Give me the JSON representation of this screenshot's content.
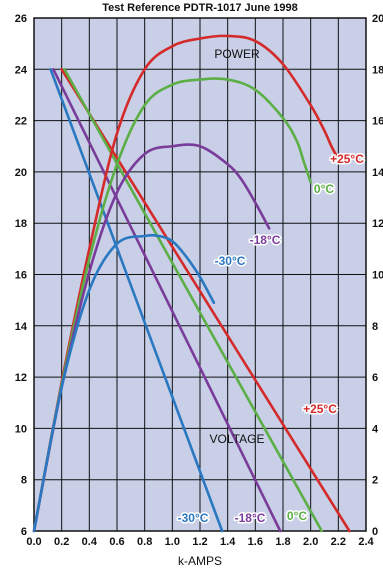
{
  "chart_data": {
    "type": "line",
    "title": "Test Reference PDTR-1017 June 1998",
    "xlabel": "k-AMPS",
    "xlim": [
      0,
      2.4
    ],
    "ylim_left": [
      6,
      26
    ],
    "ylim_right": [
      0,
      20
    ],
    "x_ticks": [
      "0.0",
      "0.2",
      "0.4",
      "0.6",
      "0.8",
      "1.0",
      "1.2",
      "1.4",
      "1.6",
      "1.8",
      "2.0",
      "2.2",
      "2.4"
    ],
    "y_ticks_left": [
      "6",
      "8",
      "10",
      "12",
      "14",
      "16",
      "18",
      "20",
      "22",
      "24",
      "26"
    ],
    "y_ticks_right": [
      "0",
      "2",
      "4",
      "6",
      "8",
      "10",
      "12",
      "14",
      "16",
      "18",
      "20"
    ],
    "grid": true,
    "annotations": {
      "power": "POWER",
      "voltage": "VOLTAGE"
    },
    "colors": {
      "p25": "#d42a2a",
      "p0": "#5cae46",
      "m18": "#7a3c9a",
      "m30": "#2a78c2",
      "plot_bg": "#c8cfe6"
    },
    "power_series": [
      {
        "name": "+25°C",
        "color_key": "p25",
        "x": [
          0,
          0.2,
          0.4,
          0.6,
          0.8,
          1.0,
          1.2,
          1.4,
          1.6,
          1.8,
          2.0,
          2.1,
          2.15,
          2.2
        ],
        "y": [
          6,
          11.8,
          17.0,
          21.5,
          24.0,
          24.9,
          25.2,
          25.3,
          25.1,
          24.2,
          22.6,
          21.6,
          21.0,
          20.5
        ]
      },
      {
        "name": "0°C",
        "color_key": "p0",
        "x": [
          0,
          0.2,
          0.4,
          0.6,
          0.8,
          1.0,
          1.2,
          1.4,
          1.6,
          1.8,
          1.9,
          1.95,
          2.0
        ],
        "y": [
          6,
          11.7,
          16.6,
          20.3,
          22.6,
          23.4,
          23.6,
          23.6,
          23.2,
          22.1,
          21.2,
          20.4,
          19.6
        ]
      },
      {
        "name": "-18°C",
        "color_key": "m18",
        "x": [
          0,
          0.2,
          0.4,
          0.6,
          0.8,
          1.0,
          1.2,
          1.4,
          1.5,
          1.6,
          1.7
        ],
        "y": [
          6,
          11.6,
          16.1,
          19.2,
          20.7,
          21.0,
          21.0,
          20.3,
          19.7,
          18.8,
          17.8
        ]
      },
      {
        "name": "-30°C",
        "color_key": "m30",
        "x": [
          0,
          0.2,
          0.4,
          0.6,
          0.8,
          0.9,
          1.0,
          1.1,
          1.2,
          1.3
        ],
        "y": [
          6,
          11.6,
          15.4,
          17.2,
          17.5,
          17.5,
          17.3,
          16.7,
          15.9,
          14.9
        ]
      }
    ],
    "voltage_series": [
      {
        "name": "+25°C",
        "color_key": "p25",
        "x": [
          0.2,
          2.28
        ],
        "y": [
          24,
          6
        ]
      },
      {
        "name": "0°C",
        "color_key": "p0",
        "x": [
          0.22,
          2.08
        ],
        "y": [
          24,
          6
        ]
      },
      {
        "name": "-18°C",
        "color_key": "m18",
        "x": [
          0.14,
          1.78
        ],
        "y": [
          24,
          6
        ]
      },
      {
        "name": "-30°C",
        "color_key": "m30",
        "x": [
          0.12,
          1.36
        ],
        "y": [
          24,
          6
        ]
      }
    ]
  }
}
